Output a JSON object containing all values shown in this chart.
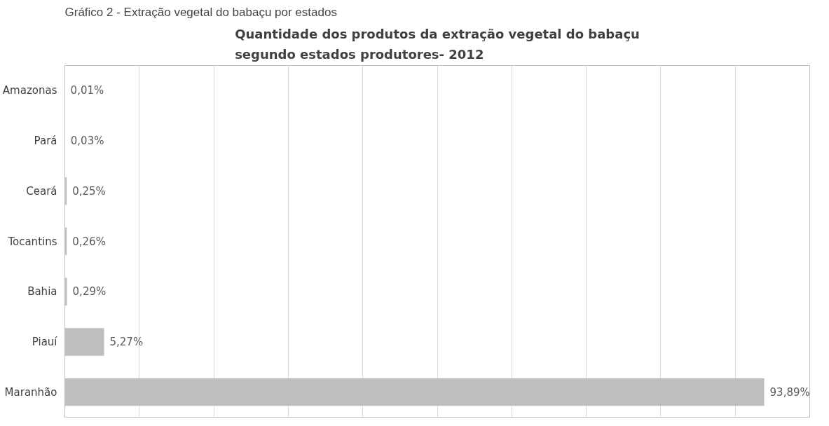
{
  "chart_data": {
    "type": "bar",
    "orientation": "horizontal",
    "title": "Quantidade dos produtos da extração vegetal do babaçu\nsegundo estados produtores- 2012",
    "annotations": [
      "Gráfico 2 - Extração vegetal do babaçu por estados"
    ],
    "categories": [
      "Amazonas",
      "Pará",
      "Ceará",
      "Tocantins",
      "Bahia",
      "Piauí",
      "Maranhão"
    ],
    "values": [
      0.01,
      0.03,
      0.25,
      0.26,
      0.29,
      5.27,
      93.89
    ],
    "value_labels": [
      "0,01%",
      "0,03%",
      "0,25%",
      "0,26%",
      "0,29%",
      "5,27%",
      "93,89%"
    ],
    "color": "#bfbfbf",
    "xlim": [
      0,
      100
    ],
    "xticks": [
      {
        "value": 0,
        "label": null
      },
      {
        "value": 10,
        "label": null
      },
      {
        "value": 20,
        "label": null
      },
      {
        "value": 30,
        "label": null
      },
      {
        "value": 40,
        "label": null
      },
      {
        "value": 50,
        "label": null
      },
      {
        "value": 60,
        "label": null
      },
      {
        "value": 70,
        "label": null
      },
      {
        "value": 80,
        "label": null
      },
      {
        "value": 90,
        "label": null
      },
      {
        "value": 100,
        "label": null
      }
    ],
    "grid": "x",
    "tick_labels": "y"
  }
}
